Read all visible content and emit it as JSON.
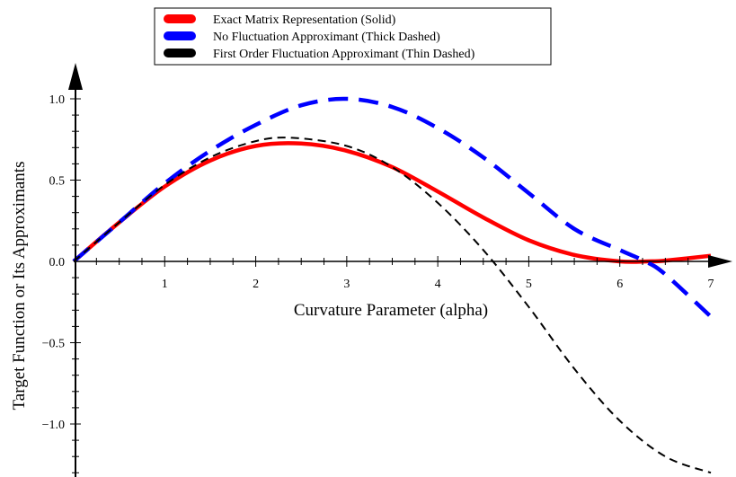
{
  "chart_data": {
    "type": "line",
    "xlabel": "Curvature Parameter (alpha)",
    "ylabel": "Target Function or Its Approximants",
    "xlim": [
      0,
      7
    ],
    "ylim": [
      -1.3,
      1.2
    ],
    "x_ticks": [
      1,
      2,
      3,
      4,
      5,
      6,
      7
    ],
    "y_ticks": [
      -1.0,
      -0.5,
      0.0,
      0.5,
      1.0
    ],
    "x_tick_labels": [
      "1",
      "2",
      "3",
      "4",
      "5",
      "6",
      "7"
    ],
    "y_tick_labels": [
      "−1.0",
      "−0.5",
      "0.0",
      "0.5",
      "1.0"
    ],
    "grid": false,
    "legend_position": "top-center",
    "series": [
      {
        "name": "Exact Matrix Representation (Solid)",
        "color": "#ff0000",
        "style": "solid",
        "x": [
          0,
          0.5,
          1.0,
          1.5,
          2.0,
          2.5,
          3.0,
          3.5,
          4.0,
          4.5,
          5.0,
          5.5,
          6.0,
          6.3,
          6.5,
          7.0
        ],
        "y": [
          0,
          0.24,
          0.46,
          0.62,
          0.71,
          0.725,
          0.68,
          0.58,
          0.43,
          0.27,
          0.13,
          0.04,
          0.0,
          0.0,
          0.005,
          0.035
        ]
      },
      {
        "name": "No Fluctuation Approximant (Thick Dashed)",
        "color": "#0000ff",
        "style": "thick-dashed",
        "x": [
          0,
          0.5,
          1.0,
          1.5,
          2.0,
          2.5,
          3.0,
          3.5,
          4.0,
          4.5,
          5.0,
          5.5,
          6.0,
          6.28,
          6.5,
          7.0
        ],
        "y": [
          0,
          0.24,
          0.48,
          0.68,
          0.84,
          0.96,
          1.0,
          0.95,
          0.82,
          0.64,
          0.42,
          0.2,
          0.07,
          0.0,
          -0.08,
          -0.34
        ]
      },
      {
        "name": "First Order Fluctuation Approximant (Thin Dashed)",
        "color": "#000000",
        "style": "thin-dashed",
        "x": [
          0,
          0.5,
          1.0,
          1.5,
          2.0,
          2.4,
          3.0,
          3.5,
          4.0,
          4.5,
          5.0,
          5.5,
          6.0,
          6.5,
          7.0
        ],
        "y": [
          0,
          0.24,
          0.47,
          0.64,
          0.74,
          0.76,
          0.71,
          0.58,
          0.36,
          0.07,
          -0.28,
          -0.66,
          -0.98,
          -1.2,
          -1.3
        ]
      }
    ]
  }
}
